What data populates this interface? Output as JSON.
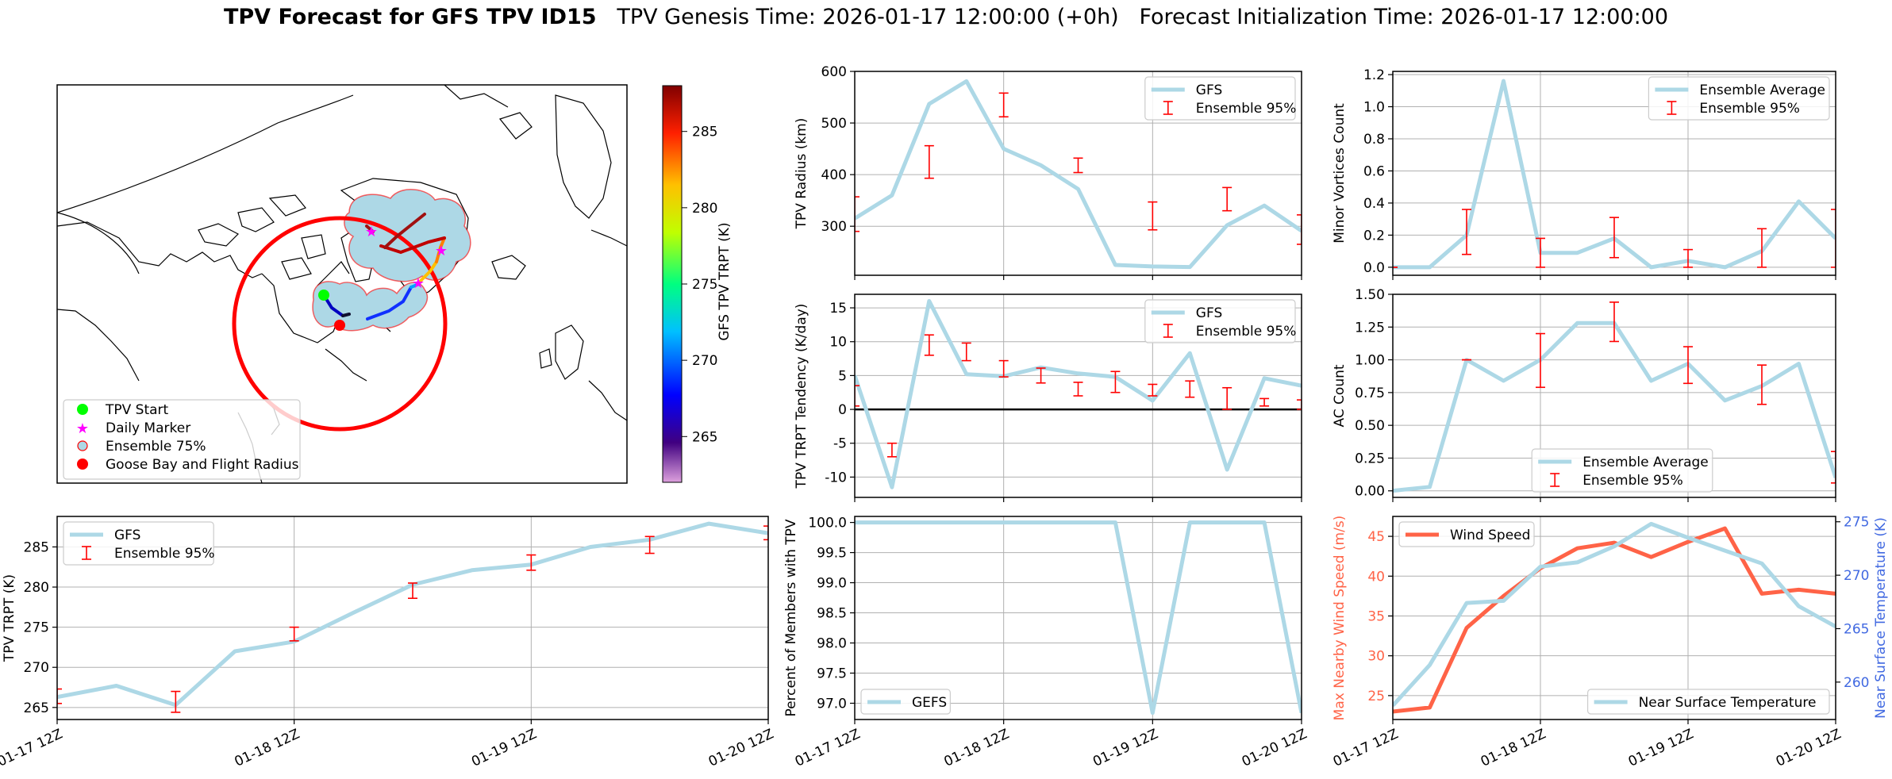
{
  "title": {
    "bold": "TPV Forecast for GFS TPV ID15",
    "rest": "   TPV Genesis Time: 2026-01-17 12:00:00 (+0h)   Forecast Initialization Time: 2026-01-17 12:00:00"
  },
  "colors": {
    "gfs_line": "#add8e6",
    "errorbar": "#ff0000",
    "wind": "#ff6347",
    "temp_axis": "#4169e1",
    "ensemble_fill": "#add8e6",
    "flight_radius": "#ff0000"
  },
  "map": {
    "colorbar_label": "GFS TPV TRPT (K)",
    "colorbar_ticks": [
      "265",
      "270",
      "275",
      "280",
      "285"
    ],
    "colorbar_range": [
      262,
      288
    ],
    "legend": [
      {
        "label": "TPV Start",
        "marker": "green-dot"
      },
      {
        "label": "Daily Marker",
        "marker": "magenta-star"
      },
      {
        "label": "Ensemble 75%",
        "marker": "lightblue-circle"
      },
      {
        "label": "Goose Bay and Flight Radius",
        "marker": "red-dot"
      }
    ]
  },
  "x_ticks": [
    "01-17 12Z",
    "01-18 12Z",
    "01-19 12Z",
    "01-20 12Z"
  ],
  "chart_data": [
    {
      "id": "radius",
      "type": "line",
      "ylabel": "TPV Radius (km)",
      "ylim": [
        205,
        600
      ],
      "yticks": [
        300,
        400,
        500,
        600
      ],
      "grid": true,
      "legend_position": "top-right",
      "x": [
        0,
        0.25,
        0.5,
        0.75,
        1.0,
        1.25,
        1.5,
        1.75,
        2.0,
        2.25,
        2.5,
        2.75,
        3.0
      ],
      "series": [
        {
          "name": "GFS",
          "values": [
            315,
            360,
            537,
            581,
            450,
            418,
            372,
            225,
            222,
            221,
            302,
            340,
            291
          ]
        }
      ],
      "errorbars": {
        "name": "Ensemble 95%",
        "x": [
          0,
          0.5,
          1.0,
          1.5,
          2.0,
          2.5,
          3.0
        ],
        "low": [
          290,
          393,
          512,
          404,
          293,
          330,
          265
        ],
        "high": [
          357,
          456,
          558,
          432,
          347,
          375,
          322
        ]
      }
    },
    {
      "id": "tendency",
      "type": "line",
      "ylabel": "TPV TRPT Tendency (K/day)",
      "ylim": [
        -13,
        17
      ],
      "yticks": [
        -10,
        -5,
        0,
        5,
        10,
        15
      ],
      "grid": true,
      "zero_line": true,
      "legend_position": "top-right",
      "x": [
        0,
        0.25,
        0.5,
        0.75,
        1.0,
        1.25,
        1.5,
        1.75,
        2.0,
        2.25,
        2.5,
        2.75,
        3.0
      ],
      "series": [
        {
          "name": "GFS",
          "values": [
            5,
            -11.5,
            16,
            5.2,
            4.9,
            6.2,
            5.3,
            4.8,
            1.3,
            8.3,
            -8.9,
            4.6,
            3.5
          ]
        }
      ],
      "errorbars": {
        "name": "Ensemble 95%",
        "x": [
          0,
          0.25,
          0.5,
          0.75,
          1.0,
          1.25,
          1.5,
          1.75,
          2.0,
          2.25,
          2.5,
          2.75,
          3.0
        ],
        "low": [
          0.5,
          -7,
          8,
          7.2,
          4.8,
          3.9,
          2,
          2.5,
          2,
          1.8,
          0,
          0.5,
          0
        ],
        "high": [
          3.5,
          -5,
          11,
          9.8,
          7.2,
          6.1,
          4,
          5.6,
          3.7,
          4.2,
          3.2,
          1.6,
          1.4
        ]
      }
    },
    {
      "id": "minor",
      "type": "line",
      "ylabel": "Minor Vortices Count",
      "ylim": [
        -0.05,
        1.22
      ],
      "yticks": [
        0.0,
        0.2,
        0.4,
        0.6,
        0.8,
        1.0,
        1.2
      ],
      "grid": true,
      "legend_position": "top-right",
      "x": [
        0,
        0.25,
        0.5,
        0.75,
        1.0,
        1.25,
        1.5,
        1.75,
        2.0,
        2.25,
        2.5,
        2.75,
        3.0
      ],
      "series": [
        {
          "name": "Ensemble Average",
          "values": [
            0.0,
            0.0,
            0.2,
            1.16,
            0.09,
            0.09,
            0.18,
            0.0,
            0.04,
            0.0,
            0.1,
            0.41,
            0.18
          ]
        }
      ],
      "errorbars": {
        "name": "Ensemble 95%",
        "x": [
          0,
          0.5,
          1.0,
          1.5,
          2.0,
          2.5,
          3.0
        ],
        "low": [
          0.0,
          0.08,
          0.0,
          0.06,
          0.0,
          0.0,
          0.0
        ],
        "high": [
          0.0,
          0.36,
          0.18,
          0.31,
          0.11,
          0.24,
          0.36
        ]
      }
    },
    {
      "id": "ac",
      "type": "line",
      "ylabel": "AC Count",
      "ylim": [
        -0.05,
        1.5
      ],
      "yticks": [
        0.0,
        0.25,
        0.5,
        0.75,
        1.0,
        1.25,
        1.5
      ],
      "grid": true,
      "legend_position": "lower-center",
      "x": [
        0,
        0.25,
        0.5,
        0.75,
        1.0,
        1.25,
        1.5,
        1.75,
        2.0,
        2.25,
        2.5,
        2.75,
        3.0
      ],
      "series": [
        {
          "name": "Ensemble Average",
          "values": [
            0.0,
            0.03,
            1.0,
            0.84,
            1.0,
            1.28,
            1.28,
            0.84,
            0.97,
            0.69,
            0.8,
            0.97,
            0.1
          ]
        }
      ],
      "errorbars": {
        "name": "Ensemble 95%",
        "x": [
          0.5,
          1.0,
          1.5,
          2.0,
          2.5,
          3.0
        ],
        "low": [
          1.0,
          0.79,
          1.14,
          0.82,
          0.66,
          0.06
        ],
        "high": [
          1.0,
          1.2,
          1.44,
          1.1,
          0.96,
          0.3
        ]
      }
    },
    {
      "id": "trpt",
      "type": "line",
      "ylabel": "TPV TRPT (K)",
      "ylim": [
        263.5,
        288.8
      ],
      "yticks": [
        265,
        270,
        275,
        280,
        285
      ],
      "grid": true,
      "legend_position": "top-left",
      "x": [
        0,
        0.25,
        0.5,
        0.75,
        1.0,
        1.25,
        1.5,
        1.75,
        2.0,
        2.25,
        2.5,
        2.75,
        3.0
      ],
      "series": [
        {
          "name": "GFS",
          "values": [
            266.3,
            267.7,
            265.3,
            272.0,
            273.2,
            276.8,
            280.3,
            282.1,
            282.8,
            285.0,
            285.9,
            287.9,
            286.7
          ]
        }
      ],
      "errorbars": {
        "name": "Ensemble 95%",
        "x": [
          0,
          0.5,
          1.0,
          1.5,
          2.0,
          2.5,
          3.0
        ],
        "low": [
          265.5,
          264.4,
          273.3,
          278.6,
          282.1,
          284.2,
          285.9
        ],
        "high": [
          267.3,
          267.0,
          275.0,
          280.5,
          284.0,
          286.3,
          287.6
        ]
      }
    },
    {
      "id": "percent",
      "type": "line",
      "ylabel": "Percent of Members with TPV",
      "ylim": [
        96.73,
        100.1
      ],
      "yticks": [
        97.0,
        97.5,
        98.0,
        98.5,
        99.0,
        99.5,
        100.0
      ],
      "grid": true,
      "legend_position": "bottom-left",
      "x": [
        0,
        0.25,
        0.5,
        0.75,
        1.0,
        1.25,
        1.5,
        1.75,
        2.0,
        2.25,
        2.5,
        2.75,
        3.0
      ],
      "series": [
        {
          "name": "GEFS",
          "values": [
            100,
            100,
            100,
            100,
            100,
            100,
            100,
            100,
            96.84,
            100,
            100,
            100,
            96.84
          ]
        }
      ]
    },
    {
      "id": "wind_temp",
      "type": "line",
      "ylabel": "Max Nearby Wind Speed (m/s)",
      "ylabel_right": "Near Surface Temperature (K)",
      "ylim": [
        22,
        47.5
      ],
      "yticks": [
        25,
        30,
        35,
        40,
        45
      ],
      "ylim_right": [
        256.5,
        275.5
      ],
      "yticks_right": [
        260,
        265,
        270,
        275
      ],
      "grid": true,
      "x": [
        0,
        0.25,
        0.5,
        0.75,
        1.0,
        1.25,
        1.5,
        1.75,
        2.0,
        2.25,
        2.5,
        2.75,
        3.0
      ],
      "series": [
        {
          "name": "Wind Speed",
          "axis": "left",
          "color": "#ff6347",
          "values": [
            23.0,
            23.5,
            33.5,
            37.5,
            41.0,
            43.5,
            44.2,
            42.4,
            44.3,
            46.0,
            37.8,
            38.3,
            37.8
          ]
        },
        {
          "name": "Near Surface Temperature",
          "axis": "right",
          "color": "#add8e6",
          "values": [
            257.8,
            261.6,
            267.4,
            267.6,
            270.8,
            271.2,
            272.7,
            274.8,
            273.5,
            272.3,
            271.1,
            267.1,
            265.2
          ]
        }
      ]
    }
  ]
}
